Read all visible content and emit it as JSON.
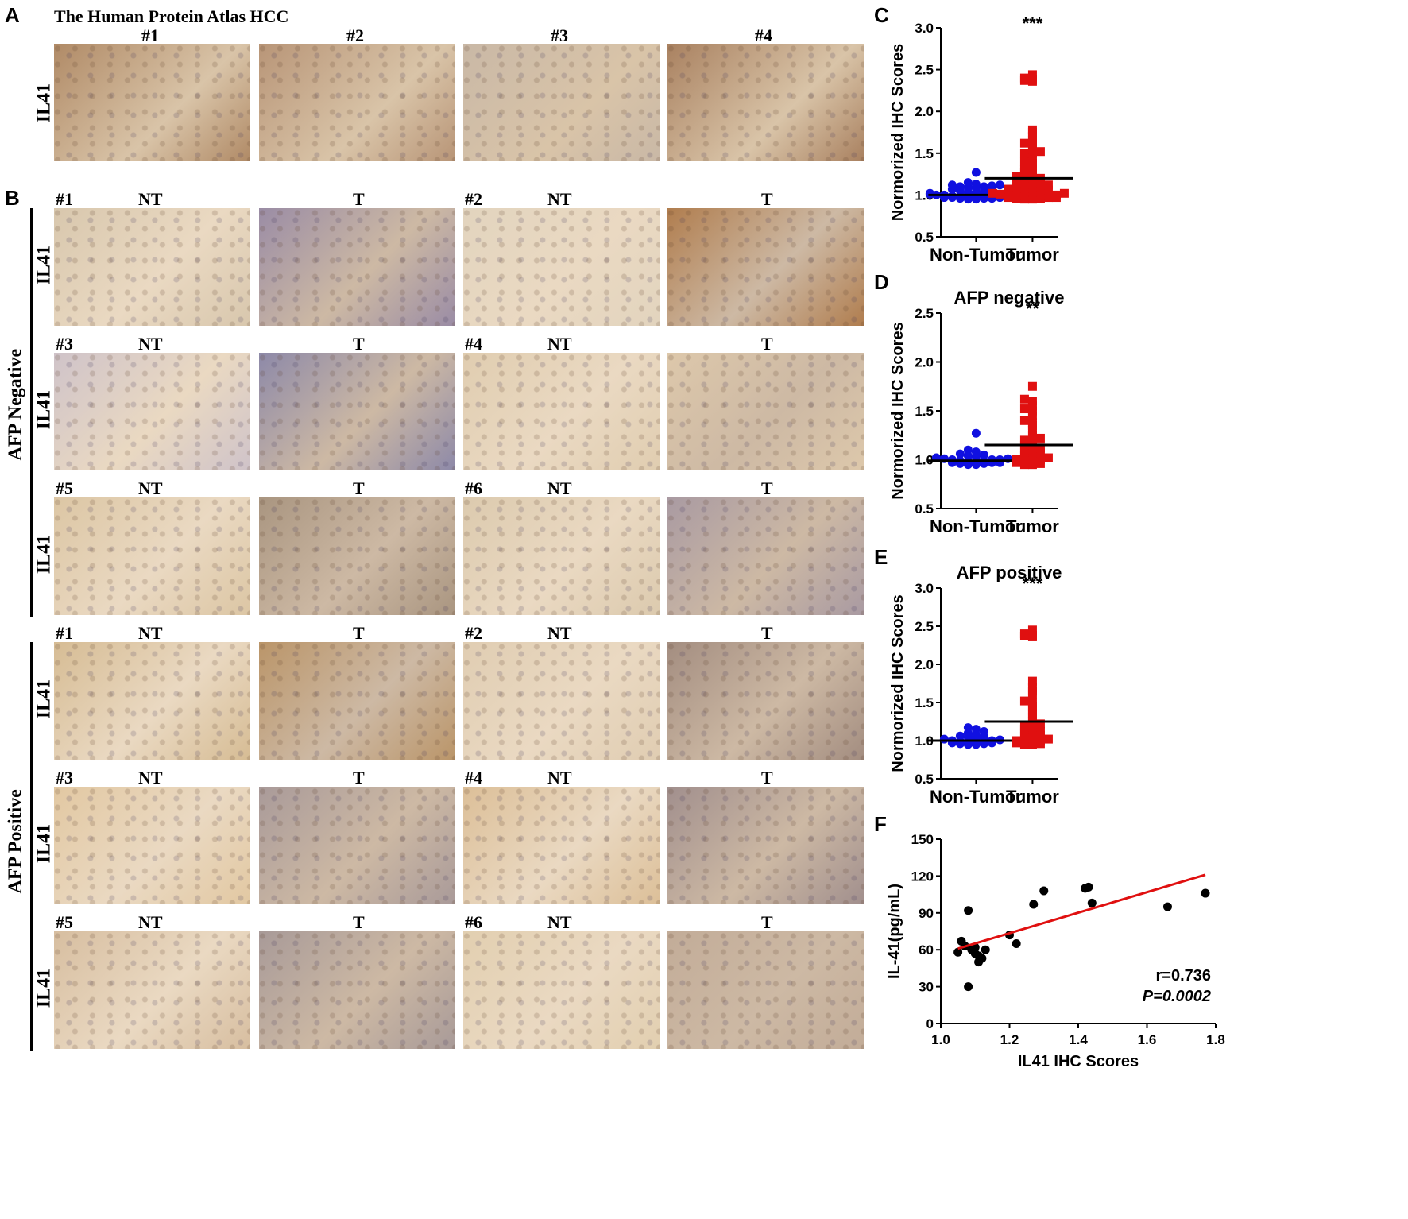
{
  "panels": {
    "A": "A",
    "B": "B",
    "C": "C",
    "D": "D",
    "E": "E",
    "F": "F"
  },
  "panel_a": {
    "title": "The Human Protein Atlas HCC",
    "row_label": "IL41",
    "samples": [
      {
        "label": "#1",
        "stain": "#b08a66"
      },
      {
        "label": "#2",
        "stain": "#b89577"
      },
      {
        "label": "#3",
        "stain": "#c9b8a6"
      },
      {
        "label": "#4",
        "stain": "#a98160"
      }
    ]
  },
  "panel_b": {
    "row_label": "IL41",
    "groups": [
      {
        "label": "AFP Negative",
        "rows": [
          {
            "pairs": [
              {
                "id": "#1",
                "nt": "NT",
                "t": "T",
                "nt_color": "#d8c7ad",
                "t_color": "#9a8ca5"
              },
              {
                "id": "#2",
                "nt": "NT",
                "t": "T",
                "nt_color": "#e2d4be",
                "t_color": "#b07d4e"
              }
            ]
          },
          {
            "pairs": [
              {
                "id": "#3",
                "nt": "NT",
                "t": "T",
                "nt_color": "#cfc3c9",
                "t_color": "#8d89a8"
              },
              {
                "id": "#4",
                "nt": "NT",
                "t": "T",
                "nt_color": "#e0cdb0",
                "t_color": "#ddc8ab"
              }
            ]
          },
          {
            "pairs": [
              {
                "id": "#5",
                "nt": "NT",
                "t": "T",
                "nt_color": "#dcc6a4",
                "t_color": "#a99580"
              },
              {
                "id": "#6",
                "nt": "NT",
                "t": "T",
                "nt_color": "#dccaae",
                "t_color": "#a99aa2"
              }
            ]
          }
        ]
      },
      {
        "label": "AFP Positive",
        "rows": [
          {
            "pairs": [
              {
                "id": "#1",
                "nt": "NT",
                "t": "T",
                "nt_color": "#d6bc94",
                "t_color": "#ba9569"
              },
              {
                "id": "#2",
                "nt": "NT",
                "t": "T",
                "nt_color": "#e0cdb2",
                "t_color": "#a38d80"
              }
            ]
          },
          {
            "pairs": [
              {
                "id": "#3",
                "nt": "NT",
                "t": "T",
                "nt_color": "#e2c8a2",
                "t_color": "#a99a99"
              },
              {
                "id": "#4",
                "nt": "NT",
                "t": "T",
                "nt_color": "#dcbf98",
                "t_color": "#a18f8d"
              }
            ]
          },
          {
            "pairs": [
              {
                "id": "#5",
                "nt": "NT",
                "t": "T",
                "nt_color": "#d7bea0",
                "t_color": "#a89a98"
              },
              {
                "id": "#6",
                "nt": "NT",
                "t": "T",
                "nt_color": "#e2cfb0",
                "t_color": "#c2ac98"
              }
            ]
          }
        ]
      }
    ]
  },
  "chart_data": [
    {
      "id": "C",
      "type": "scatter",
      "title": "",
      "ylabel": "Normorized IHC Scores",
      "ylim": [
        0.5,
        3.0
      ],
      "yticks": [
        "0.5",
        "1.0",
        "1.5",
        "2.0",
        "2.5",
        "3.0"
      ],
      "categories": [
        "Non-Tumor",
        "Tumor"
      ],
      "significance": "***",
      "series": [
        {
          "color": "#1010e0",
          "marker": "circle",
          "mean": 1.0,
          "values": [
            0.95,
            0.95,
            0.96,
            0.96,
            0.96,
            0.97,
            0.97,
            0.97,
            0.98,
            0.98,
            0.98,
            0.99,
            0.99,
            0.99,
            1.0,
            1.0,
            1.0,
            1.0,
            1.01,
            1.01,
            1.02,
            1.02,
            1.03,
            1.03,
            1.04,
            1.05,
            1.06,
            1.07,
            1.08,
            1.09,
            1.1,
            1.1,
            1.11,
            1.12,
            1.12,
            1.13,
            1.15,
            1.27
          ]
        },
        {
          "color": "#e01010",
          "marker": "square",
          "mean": 1.2,
          "values": [
            0.95,
            0.95,
            0.96,
            0.96,
            0.97,
            0.97,
            0.97,
            0.98,
            0.98,
            0.99,
            0.99,
            1.0,
            1.0,
            1.0,
            1.01,
            1.02,
            1.02,
            1.03,
            1.04,
            1.05,
            1.05,
            1.06,
            1.07,
            1.08,
            1.08,
            1.1,
            1.1,
            1.12,
            1.13,
            1.15,
            1.15,
            1.17,
            1.18,
            1.2,
            1.2,
            1.22,
            1.25,
            1.27,
            1.3,
            1.3,
            1.35,
            1.38,
            1.4,
            1.45,
            1.5,
            1.5,
            1.52,
            1.55,
            1.6,
            1.62,
            1.65,
            1.7,
            1.75,
            1.78,
            2.36,
            2.38,
            2.37,
            2.4,
            2.44
          ]
        }
      ]
    },
    {
      "id": "D",
      "type": "scatter",
      "title": "AFP negative",
      "ylabel": "Normorized IHC Scores",
      "ylim": [
        0.5,
        2.5
      ],
      "yticks": [
        "0.5",
        "1.0",
        "1.5",
        "2.0",
        "2.5"
      ],
      "categories": [
        "Non-Tumor",
        "Tumor"
      ],
      "significance": "**",
      "series": [
        {
          "color": "#1010e0",
          "marker": "circle",
          "mean": 0.99,
          "values": [
            0.95,
            0.95,
            0.96,
            0.96,
            0.97,
            0.97,
            0.97,
            0.98,
            0.98,
            0.99,
            0.99,
            1.0,
            1.0,
            1.0,
            1.01,
            1.01,
            1.02,
            1.03,
            1.04,
            1.05,
            1.06,
            1.08,
            1.1,
            1.27
          ]
        },
        {
          "color": "#e01010",
          "marker": "square",
          "mean": 1.15,
          "values": [
            0.95,
            0.95,
            0.96,
            0.97,
            0.98,
            0.99,
            1.0,
            1.0,
            1.02,
            1.03,
            1.05,
            1.07,
            1.08,
            1.1,
            1.12,
            1.15,
            1.15,
            1.18,
            1.2,
            1.22,
            1.25,
            1.3,
            1.35,
            1.38,
            1.4,
            1.45,
            1.5,
            1.52,
            1.55,
            1.6,
            1.62,
            1.75
          ]
        }
      ]
    },
    {
      "id": "E",
      "type": "scatter",
      "title": "AFP positive",
      "ylabel": "Normorized IHC Scores",
      "ylim": [
        0.5,
        3.0
      ],
      "yticks": [
        "0.5",
        "1.0",
        "1.5",
        "2.0",
        "2.5",
        "3.0"
      ],
      "categories": [
        "Non-Tumor",
        "Tumor"
      ],
      "significance": "***",
      "series": [
        {
          "color": "#1010e0",
          "marker": "circle",
          "mean": 1.0,
          "values": [
            0.95,
            0.95,
            0.96,
            0.96,
            0.97,
            0.97,
            0.98,
            0.98,
            0.99,
            0.99,
            1.0,
            1.0,
            1.01,
            1.02,
            1.03,
            1.04,
            1.05,
            1.06,
            1.08,
            1.1,
            1.12,
            1.15,
            1.17
          ]
        },
        {
          "color": "#e01010",
          "marker": "square",
          "mean": 1.25,
          "values": [
            0.95,
            0.95,
            0.96,
            0.97,
            0.98,
            0.99,
            1.0,
            1.0,
            1.02,
            1.03,
            1.05,
            1.07,
            1.08,
            1.1,
            1.12,
            1.15,
            1.15,
            1.18,
            1.2,
            1.22,
            1.25,
            1.3,
            1.35,
            1.4,
            1.45,
            1.5,
            1.52,
            1.6,
            1.65,
            1.7,
            1.78,
            2.38,
            2.36,
            2.37,
            2.4,
            2.45
          ]
        }
      ]
    },
    {
      "id": "F",
      "type": "scatter",
      "title": "",
      "xlabel": "IL41 IHC Scores",
      "ylabel": "IL-41(pg/mL)",
      "xlim": [
        1.0,
        1.8
      ],
      "ylim": [
        0,
        150
      ],
      "xticks": [
        "1.0",
        "1.2",
        "1.4",
        "1.6",
        "1.8"
      ],
      "yticks": [
        "0",
        "30",
        "60",
        "90",
        "120",
        "150"
      ],
      "points": [
        [
          1.05,
          58
        ],
        [
          1.06,
          67
        ],
        [
          1.07,
          63
        ],
        [
          1.08,
          92
        ],
        [
          1.08,
          30
        ],
        [
          1.09,
          60
        ],
        [
          1.1,
          57
        ],
        [
          1.1,
          62
        ],
        [
          1.11,
          50
        ],
        [
          1.11,
          55
        ],
        [
          1.12,
          53
        ],
        [
          1.13,
          60
        ],
        [
          1.2,
          72
        ],
        [
          1.22,
          65
        ],
        [
          1.27,
          97
        ],
        [
          1.3,
          108
        ],
        [
          1.42,
          110
        ],
        [
          1.43,
          111
        ],
        [
          1.44,
          98
        ],
        [
          1.66,
          95
        ],
        [
          1.77,
          106
        ]
      ],
      "fit": {
        "color": "#e01010",
        "x": [
          1.05,
          1.77
        ],
        "y": [
          61,
          121
        ]
      },
      "annotation": {
        "r": "r=0.736",
        "p": "P=0.0002"
      }
    }
  ]
}
